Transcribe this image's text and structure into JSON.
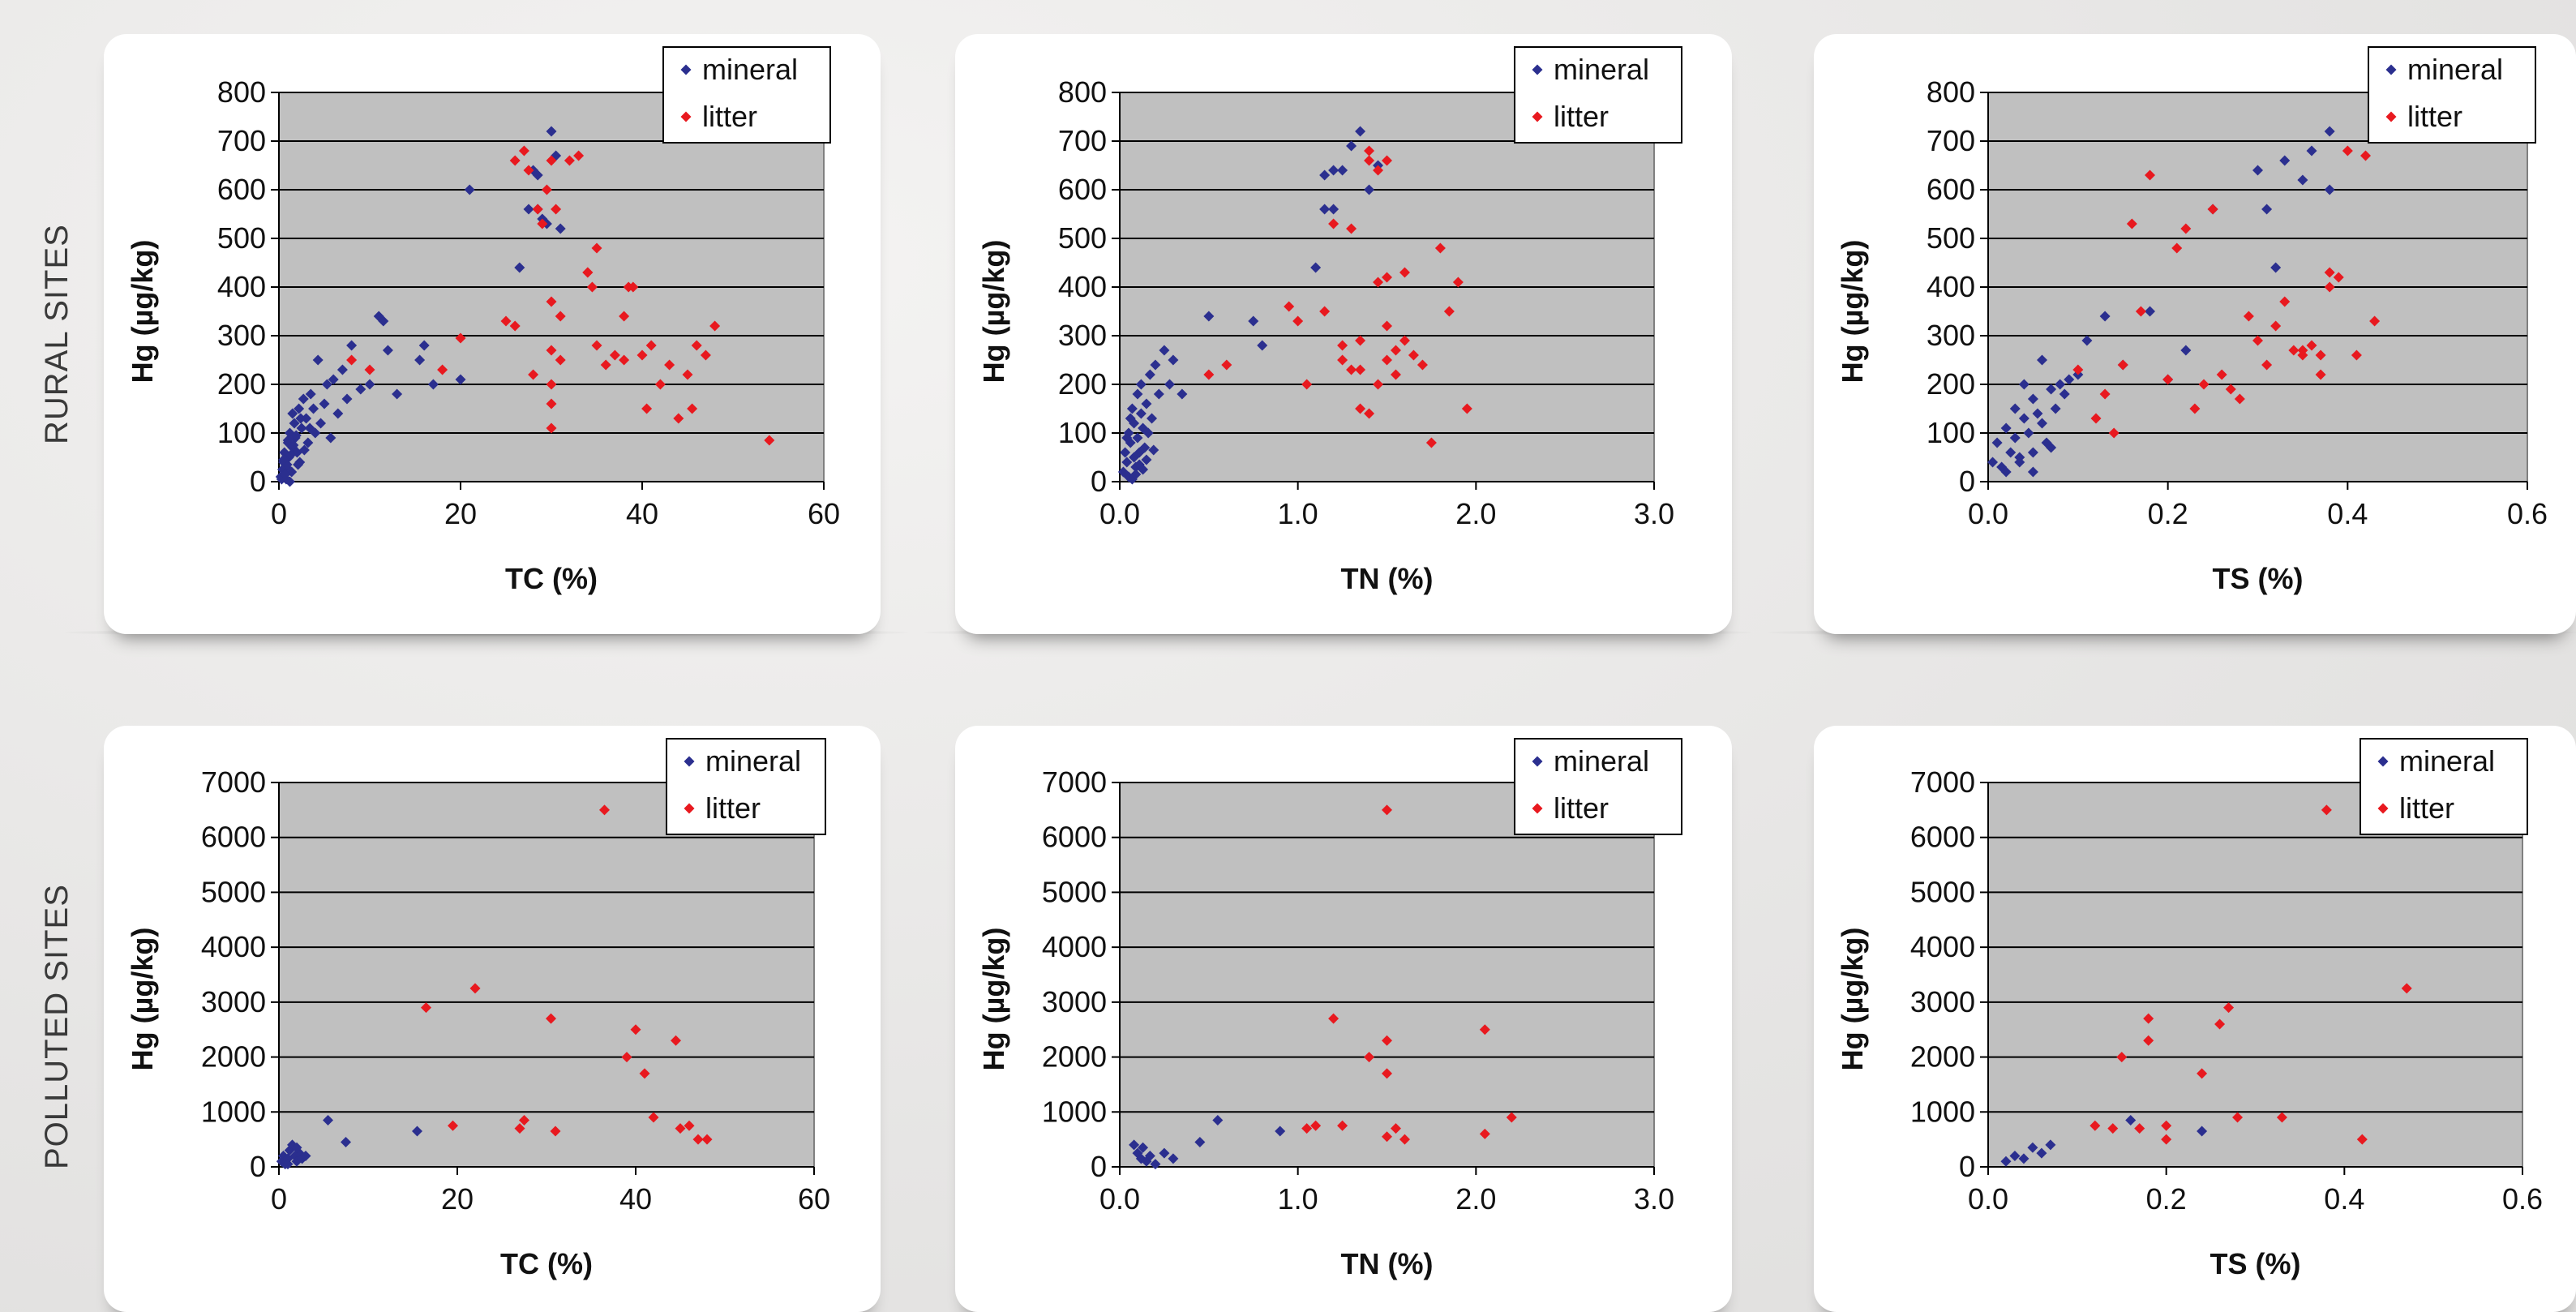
{
  "rows": [
    {
      "label": "RURAL SITES"
    },
    {
      "label": "POLLUTED SITES"
    }
  ],
  "colors": {
    "mineral": "#2b2f8f",
    "litter": "#e8191f",
    "plot_bg": "#c0c0c0"
  },
  "chart_data": [
    {
      "type": "scatter",
      "xlabel": "TC (%)",
      "ylabel": "Hg (µg/kg)",
      "xlim": [
        0,
        60
      ],
      "ylim": [
        0,
        800
      ],
      "xticks": [
        "0",
        "20",
        "40",
        "60"
      ],
      "yticks": [
        "0",
        "100",
        "200",
        "300",
        "400",
        "500",
        "600",
        "700",
        "800"
      ],
      "xtick_values": [
        0,
        20,
        40,
        60
      ],
      "ytick_values": [
        0,
        100,
        200,
        300,
        400,
        500,
        600,
        700,
        800
      ],
      "grid": true,
      "legend": "top-right",
      "series": [
        {
          "name": "mineral",
          "x": [
            0.2,
            0.4,
            0.5,
            0.6,
            0.8,
            1.0,
            1.1,
            1.2,
            1.4,
            1.5,
            1.7,
            1.8,
            2.0,
            2.2,
            2.3,
            2.5,
            2.7,
            3.0,
            3.2,
            3.5,
            3.8,
            4.0,
            4.3,
            4.6,
            5.0,
            5.3,
            5.7,
            6.0,
            6.5,
            7.0,
            7.5,
            8.0,
            9.0,
            10.0,
            11.0,
            11.5,
            12.0,
            13.0,
            15.5,
            16.0,
            17.0,
            20.0,
            0.3,
            0.7,
            0.9,
            1.3,
            1.6,
            1.9,
            2.4,
            2.8,
            3.4,
            0.5,
            1.0,
            1.5,
            2.1,
            0.8,
            1.2,
            21.0,
            26.5,
            27.5,
            28.0,
            28.5,
            29.5,
            30.0,
            30.5,
            31.0,
            29.0,
            28.5
          ],
          "y": [
            10,
            25,
            40,
            60,
            30,
            80,
            50,
            100,
            20,
            70,
            120,
            90,
            60,
            150,
            40,
            110,
            170,
            130,
            80,
            180,
            150,
            100,
            250,
            120,
            160,
            200,
            90,
            210,
            140,
            230,
            170,
            280,
            190,
            200,
            340,
            330,
            270,
            180,
            250,
            280,
            200,
            210,
            5,
            15,
            35,
            55,
            75,
            95,
            130,
            65,
            110,
            45,
            85,
            140,
            35,
            5,
            0,
            600,
            440,
            560,
            640,
            560,
            530,
            720,
            670,
            520,
            540,
            630
          ]
        },
        {
          "name": "litter",
          "x": [
            8,
            10,
            18,
            20,
            25,
            26,
            27,
            28,
            28.5,
            29,
            29.5,
            30,
            30,
            30,
            30,
            30,
            30.5,
            31,
            32,
            33,
            34,
            34.5,
            35,
            35,
            36,
            37,
            38,
            38.5,
            39,
            40,
            40.5,
            41,
            42,
            43,
            44,
            45,
            45.5,
            46,
            47,
            48,
            54,
            26,
            27.5,
            30,
            31,
            34,
            38
          ],
          "y": [
            250,
            230,
            230,
            295,
            330,
            660,
            680,
            220,
            560,
            530,
            600,
            370,
            270,
            200,
            160,
            110,
            560,
            340,
            660,
            670,
            430,
            400,
            280,
            480,
            240,
            260,
            340,
            400,
            400,
            260,
            150,
            280,
            200,
            240,
            130,
            220,
            150,
            280,
            260,
            320,
            85,
            320,
            640,
            660,
            250,
            430,
            250
          ]
        }
      ]
    },
    {
      "type": "scatter",
      "xlabel": "TN (%)",
      "ylabel": "Hg (µg/kg)",
      "xlim": [
        0,
        3
      ],
      "ylim": [
        0,
        800
      ],
      "xticks": [
        "0.0",
        "1.0",
        "2.0",
        "3.0"
      ],
      "yticks": [
        "0",
        "100",
        "200",
        "300",
        "400",
        "500",
        "600",
        "700",
        "800"
      ],
      "xtick_values": [
        0,
        1,
        2,
        3
      ],
      "ytick_values": [
        0,
        100,
        200,
        300,
        400,
        500,
        600,
        700,
        800
      ],
      "grid": true,
      "legend": "top-right",
      "series": [
        {
          "name": "mineral",
          "x": [
            0.02,
            0.03,
            0.04,
            0.05,
            0.05,
            0.06,
            0.07,
            0.08,
            0.08,
            0.09,
            0.1,
            0.1,
            0.11,
            0.12,
            0.12,
            0.13,
            0.14,
            0.15,
            0.16,
            0.17,
            0.18,
            0.2,
            0.22,
            0.25,
            0.28,
            0.3,
            0.35,
            0.5,
            0.75,
            0.8,
            1.1,
            1.15,
            1.2,
            1.25,
            1.3,
            1.35,
            1.4,
            1.45,
            1.2,
            1.15,
            0.07,
            0.09,
            0.11,
            0.13,
            0.06,
            0.04,
            0.15,
            0.19
          ],
          "y": [
            20,
            60,
            40,
            100,
            10,
            80,
            150,
            50,
            120,
            30,
            180,
            90,
            60,
            140,
            200,
            110,
            70,
            160,
            100,
            220,
            130,
            240,
            180,
            270,
            200,
            250,
            180,
            340,
            330,
            280,
            440,
            560,
            560,
            640,
            690,
            720,
            600,
            650,
            640,
            630,
            5,
            15,
            35,
            25,
            130,
            90,
            45,
            65
          ]
        },
        {
          "name": "litter",
          "x": [
            0.5,
            0.6,
            0.95,
            1.0,
            1.05,
            1.15,
            1.2,
            1.25,
            1.3,
            1.3,
            1.35,
            1.35,
            1.4,
            1.4,
            1.45,
            1.45,
            1.5,
            1.5,
            1.5,
            1.55,
            1.55,
            1.6,
            1.6,
            1.65,
            1.7,
            1.75,
            1.8,
            1.85,
            1.9,
            1.95,
            1.4,
            1.45,
            1.5,
            1.35,
            1.25
          ],
          "y": [
            220,
            240,
            360,
            330,
            200,
            350,
            530,
            280,
            230,
            520,
            150,
            290,
            140,
            660,
            640,
            200,
            660,
            320,
            420,
            270,
            220,
            430,
            290,
            260,
            240,
            80,
            480,
            350,
            410,
            150,
            680,
            410,
            250,
            230,
            250
          ]
        }
      ]
    },
    {
      "type": "scatter",
      "xlabel": "TS (%)",
      "ylabel": "Hg (µg/kg)",
      "xlim": [
        0,
        0.6
      ],
      "ylim": [
        0,
        800
      ],
      "xticks": [
        "0.0",
        "0.2",
        "0.4",
        "0.6"
      ],
      "yticks": [
        "0",
        "100",
        "200",
        "300",
        "400",
        "500",
        "600",
        "700",
        "800"
      ],
      "xtick_values": [
        0,
        0.2,
        0.4,
        0.6
      ],
      "ytick_values": [
        0,
        100,
        200,
        300,
        400,
        500,
        600,
        700,
        800
      ],
      "grid": true,
      "legend": "top-right",
      "series": [
        {
          "name": "mineral",
          "x": [
            0.005,
            0.01,
            0.015,
            0.02,
            0.025,
            0.03,
            0.03,
            0.035,
            0.04,
            0.04,
            0.045,
            0.05,
            0.05,
            0.055,
            0.06,
            0.06,
            0.065,
            0.07,
            0.075,
            0.08,
            0.085,
            0.09,
            0.1,
            0.11,
            0.13,
            0.15,
            0.18,
            0.2,
            0.22,
            0.25,
            0.3,
            0.32,
            0.33,
            0.35,
            0.36,
            0.38,
            0.38,
            0.31,
            0.02,
            0.035,
            0.05,
            0.07
          ],
          "y": [
            40,
            80,
            30,
            110,
            60,
            150,
            90,
            50,
            130,
            200,
            100,
            170,
            60,
            140,
            120,
            250,
            80,
            190,
            150,
            200,
            180,
            210,
            220,
            290,
            340,
            240,
            350,
            210,
            270,
            560,
            640,
            440,
            660,
            620,
            680,
            720,
            600,
            560,
            20,
            40,
            20,
            70
          ]
        },
        {
          "name": "litter",
          "x": [
            0.1,
            0.12,
            0.13,
            0.14,
            0.15,
            0.16,
            0.17,
            0.18,
            0.2,
            0.21,
            0.22,
            0.23,
            0.24,
            0.25,
            0.26,
            0.27,
            0.28,
            0.29,
            0.3,
            0.31,
            0.32,
            0.33,
            0.34,
            0.35,
            0.36,
            0.37,
            0.38,
            0.38,
            0.39,
            0.4,
            0.41,
            0.42,
            0.43,
            0.35,
            0.37
          ],
          "y": [
            230,
            130,
            180,
            100,
            240,
            530,
            350,
            630,
            210,
            480,
            520,
            150,
            200,
            560,
            220,
            190,
            170,
            340,
            290,
            240,
            320,
            370,
            270,
            260,
            280,
            220,
            430,
            400,
            420,
            680,
            260,
            670,
            330,
            270,
            260
          ]
        }
      ]
    },
    {
      "type": "scatter",
      "xlabel": "TC (%)",
      "ylabel": "Hg (µg/kg)",
      "xlim": [
        0,
        60
      ],
      "ylim": [
        0,
        7000
      ],
      "xticks": [
        "0",
        "20",
        "40",
        "60"
      ],
      "yticks": [
        "0",
        "1000",
        "2000",
        "3000",
        "4000",
        "5000",
        "6000",
        "7000"
      ],
      "xtick_values": [
        0,
        20,
        40,
        60
      ],
      "ytick_values": [
        0,
        1000,
        2000,
        3000,
        4000,
        5000,
        6000,
        7000
      ],
      "grid": true,
      "legend": "top-right",
      "series": [
        {
          "name": "mineral",
          "x": [
            0.3,
            0.5,
            0.7,
            1.0,
            1.2,
            1.5,
            1.8,
            2.0,
            2.3,
            2.6,
            3.0,
            1.0,
            2.0,
            5.5,
            7.5,
            15.5
          ],
          "y": [
            100,
            200,
            50,
            150,
            300,
            400,
            200,
            100,
            250,
            150,
            200,
            50,
            350,
            850,
            450,
            650
          ]
        },
        {
          "name": "litter",
          "x": [
            16.5,
            19.5,
            22,
            27,
            27.5,
            30.5,
            31,
            36.5,
            39,
            40,
            41,
            42,
            44.5,
            45,
            46,
            47,
            48
          ],
          "y": [
            2900,
            750,
            3250,
            700,
            850,
            2700,
            650,
            6500,
            2000,
            2500,
            1700,
            900,
            2300,
            700,
            750,
            500,
            500
          ]
        }
      ]
    },
    {
      "type": "scatter",
      "xlabel": "TN (%)",
      "ylabel": "Hg (µg/kg)",
      "xlim": [
        0,
        3
      ],
      "ylim": [
        0,
        7000
      ],
      "xticks": [
        "0.0",
        "1.0",
        "2.0",
        "3.0"
      ],
      "yticks": [
        "0",
        "1000",
        "2000",
        "3000",
        "4000",
        "5000",
        "6000",
        "7000"
      ],
      "xtick_values": [
        0,
        1,
        2,
        3
      ],
      "ytick_values": [
        0,
        1000,
        2000,
        3000,
        4000,
        5000,
        6000,
        7000
      ],
      "grid": true,
      "legend": "top-right",
      "series": [
        {
          "name": "mineral",
          "x": [
            0.08,
            0.1,
            0.12,
            0.13,
            0.15,
            0.17,
            0.2,
            0.25,
            0.3,
            0.45,
            0.55,
            0.9
          ],
          "y": [
            400,
            250,
            150,
            350,
            100,
            200,
            50,
            250,
            150,
            450,
            850,
            650
          ]
        },
        {
          "name": "litter",
          "x": [
            1.05,
            1.1,
            1.2,
            1.25,
            1.4,
            1.5,
            1.5,
            1.5,
            1.5,
            1.55,
            1.6,
            2.05,
            2.05,
            2.2
          ],
          "y": [
            700,
            750,
            2700,
            750,
            2000,
            6500,
            2300,
            1700,
            550,
            700,
            500,
            2500,
            600,
            900
          ]
        }
      ]
    },
    {
      "type": "scatter",
      "xlabel": "TS (%)",
      "ylabel": "Hg (µg/kg)",
      "xlim": [
        0,
        0.6
      ],
      "ylim": [
        0,
        7000
      ],
      "xticks": [
        "0.0",
        "0.2",
        "0.4",
        "0.6"
      ],
      "yticks": [
        "0",
        "1000",
        "2000",
        "3000",
        "4000",
        "5000",
        "6000",
        "7000"
      ],
      "xtick_values": [
        0,
        0.2,
        0.4,
        0.6
      ],
      "ytick_values": [
        0,
        1000,
        2000,
        3000,
        4000,
        5000,
        6000,
        7000
      ],
      "grid": true,
      "legend": "top-right",
      "series": [
        {
          "name": "mineral",
          "x": [
            0.02,
            0.03,
            0.04,
            0.05,
            0.06,
            0.07,
            0.16,
            0.24
          ],
          "y": [
            100,
            200,
            150,
            350,
            250,
            400,
            850,
            650
          ]
        },
        {
          "name": "litter",
          "x": [
            0.12,
            0.14,
            0.15,
            0.17,
            0.18,
            0.18,
            0.2,
            0.2,
            0.24,
            0.26,
            0.27,
            0.28,
            0.33,
            0.38,
            0.42,
            0.47
          ],
          "y": [
            750,
            700,
            2000,
            700,
            2700,
            2300,
            750,
            500,
            1700,
            2600,
            2900,
            900,
            900,
            6500,
            500,
            3250
          ]
        }
      ]
    }
  ]
}
